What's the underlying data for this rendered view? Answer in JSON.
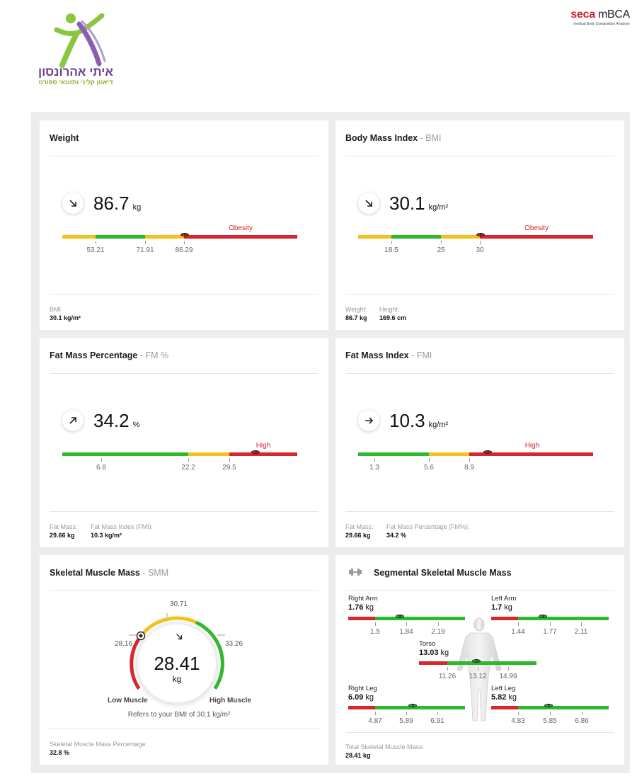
{
  "header": {
    "logo_title": "איתי אהרונסון",
    "logo_subtitle": "דיאטן קליני ותזונאי ספורט",
    "brand_seca": "seca",
    "brand_product": "mBCA",
    "brand_tagline": "medical Body Composition Analyzer",
    "icon": "person-logo-icon"
  },
  "colors": {
    "red": "#d7262c",
    "green": "#2eb82e",
    "yellow": "#f2c21b"
  },
  "weight": {
    "title": "Weight",
    "value": "86.7",
    "unit": "kg",
    "trend_icon": "arrow-down-right-icon",
    "zone_label": "Obesity",
    "ticks": [
      "53.21",
      "71.91",
      "86.29"
    ],
    "footer": [
      {
        "key": "BMI",
        "value": "30.1 kg/m²"
      }
    ]
  },
  "bmi": {
    "title": "Body Mass Index",
    "abbr": "BMI",
    "value": "30.1",
    "unit": "kg/m²",
    "trend_icon": "arrow-down-right-icon",
    "zone_label": "Obesity",
    "ticks": [
      "18.5",
      "25",
      "30"
    ],
    "footer": [
      {
        "key": "Weight:",
        "value": "86.7 kg"
      },
      {
        "key": "Height:",
        "value": "169.6 cm"
      }
    ]
  },
  "fm_pct": {
    "title": "Fat Mass Percentage",
    "abbr": "FM %",
    "value": "34.2",
    "unit": "%",
    "trend_icon": "arrow-up-right-icon",
    "zone_label": "High",
    "ticks": [
      "6.8",
      "22.2",
      "29.5"
    ],
    "footer": [
      {
        "key": "Fat Mass:",
        "value": "29.66 kg"
      },
      {
        "key": "Fat Mass Index (FMI):",
        "value": "10.3 kg/m²"
      }
    ]
  },
  "fmi": {
    "title": "Fat Mass Index",
    "abbr": "FMI",
    "value": "10.3",
    "unit": "kg/m²",
    "trend_icon": "arrow-right-icon",
    "zone_label": "High",
    "ticks": [
      "1.3",
      "5.6",
      "8.9"
    ],
    "footer": [
      {
        "key": "Fat Mass:",
        "value": "29.66 kg"
      },
      {
        "key": "Fat Mass Percentage (FM%):",
        "value": "34.2 %"
      }
    ]
  },
  "smm": {
    "title": "Skeletal Muscle Mass",
    "abbr": "SMM",
    "value": "28.41",
    "unit": "kg",
    "trend_icon": "arrow-down-right-icon",
    "gauge_ticks": [
      "28.16",
      "30.71",
      "33.26"
    ],
    "low_label": "Low Muscle",
    "high_label": "High Muscle",
    "note": "Refers to your BMI of 30.1 kg/m²",
    "footer": [
      {
        "key": "Skeletal Muscle Mass Percentage:",
        "value": "32.8 %"
      }
    ]
  },
  "segmental": {
    "title": "Segmental Skeletal Muscle Mass",
    "icon": "dumbbell-icon",
    "right_arm": {
      "label": "Right Arm",
      "value": "1.76",
      "unit": "kg",
      "ticks": [
        "1.5",
        "1.84",
        "2.19"
      ]
    },
    "left_arm": {
      "label": "Left Arm",
      "value": "1.7",
      "unit": "kg",
      "ticks": [
        "1.44",
        "1.77",
        "2.11"
      ]
    },
    "torso": {
      "label": "Torso",
      "value": "13.03",
      "unit": "kg",
      "ticks": [
        "11.26",
        "13.12",
        "14.99"
      ]
    },
    "right_leg": {
      "label": "Right Leg",
      "value": "6.09",
      "unit": "kg",
      "ticks": [
        "4.87",
        "5.89",
        "6.91"
      ]
    },
    "left_leg": {
      "label": "Left Leg",
      "value": "5.82",
      "unit": "kg",
      "ticks": [
        "4.83",
        "5.85",
        "6.86"
      ]
    },
    "footer": [
      {
        "key": "Total Skeletal Muscle Mass:",
        "value": "28.41 kg"
      }
    ]
  }
}
